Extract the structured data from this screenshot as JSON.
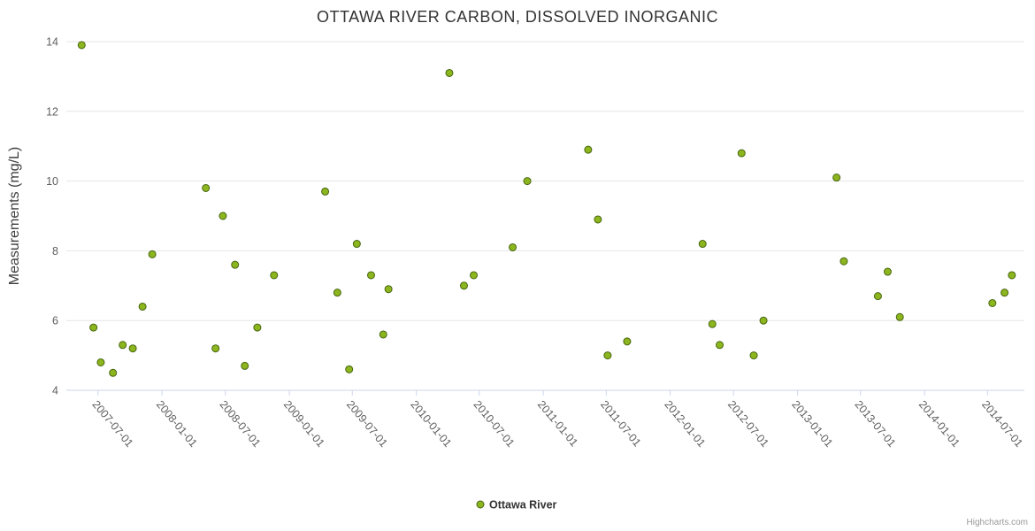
{
  "chart": {
    "title": "OTTAWA RIVER CARBON, DISSOLVED INORGANIC",
    "yaxis_title": "Measurements (mg/L)"
  },
  "legend": {
    "label": "Ottawa River"
  },
  "credits": {
    "text": "Highcharts.com"
  },
  "chart_data": {
    "type": "scatter",
    "title": "OTTAWA RIVER CARBON, DISSOLVED INORGANIC",
    "xlabel": "",
    "ylabel": "Measurements (mg/L)",
    "ylim": [
      4,
      14
    ],
    "y_ticks": [
      4,
      6,
      8,
      10,
      12,
      14
    ],
    "x_ticks": [
      "2007-07-01",
      "2008-01-01",
      "2008-07-01",
      "2009-01-01",
      "2009-07-01",
      "2010-01-01",
      "2010-07-01",
      "2011-01-01",
      "2011-07-01",
      "2012-01-01",
      "2012-07-01",
      "2013-01-01",
      "2013-07-01",
      "2014-01-01",
      "2014-07-01"
    ],
    "x_range": [
      "2007-04-01",
      "2014-10-15"
    ],
    "grid": "horizontal-only",
    "legend_position": "bottom-center",
    "colors": {
      "grid": "#e6e6e6",
      "axis": "#ccd6eb",
      "tick_label": "#606060"
    },
    "series": [
      {
        "name": "Ottawa River",
        "marker_fill": "#8cb51e",
        "marker_stroke": "#466610",
        "points": [
          {
            "x": "2007-05-15",
            "y": 13.9
          },
          {
            "x": "2007-06-18",
            "y": 5.8
          },
          {
            "x": "2007-07-09",
            "y": 4.8
          },
          {
            "x": "2007-08-13",
            "y": 4.5
          },
          {
            "x": "2007-09-10",
            "y": 5.3
          },
          {
            "x": "2007-10-09",
            "y": 5.2
          },
          {
            "x": "2007-11-06",
            "y": 6.4
          },
          {
            "x": "2007-12-04",
            "y": 7.9
          },
          {
            "x": "2008-05-06",
            "y": 9.8
          },
          {
            "x": "2008-06-03",
            "y": 5.2
          },
          {
            "x": "2008-06-24",
            "y": 9.0
          },
          {
            "x": "2008-07-29",
            "y": 7.6
          },
          {
            "x": "2008-08-26",
            "y": 4.7
          },
          {
            "x": "2008-10-01",
            "y": 5.8
          },
          {
            "x": "2008-11-18",
            "y": 7.3
          },
          {
            "x": "2009-04-14",
            "y": 9.7
          },
          {
            "x": "2009-05-19",
            "y": 6.8
          },
          {
            "x": "2009-06-22",
            "y": 4.6
          },
          {
            "x": "2009-07-14",
            "y": 8.2
          },
          {
            "x": "2009-08-24",
            "y": 7.3
          },
          {
            "x": "2009-09-28",
            "y": 5.6
          },
          {
            "x": "2009-10-13",
            "y": 6.9
          },
          {
            "x": "2010-04-06",
            "y": 13.1
          },
          {
            "x": "2010-05-18",
            "y": 7.0
          },
          {
            "x": "2010-06-15",
            "y": 7.3
          },
          {
            "x": "2010-10-05",
            "y": 8.1
          },
          {
            "x": "2010-11-16",
            "y": 10.0
          },
          {
            "x": "2011-05-10",
            "y": 10.9
          },
          {
            "x": "2011-06-07",
            "y": 8.9
          },
          {
            "x": "2011-07-05",
            "y": 5.0
          },
          {
            "x": "2011-08-30",
            "y": 5.4
          },
          {
            "x": "2012-04-03",
            "y": 8.2
          },
          {
            "x": "2012-05-01",
            "y": 5.9
          },
          {
            "x": "2012-05-22",
            "y": 5.3
          },
          {
            "x": "2012-07-24",
            "y": 10.8
          },
          {
            "x": "2012-08-28",
            "y": 5.0
          },
          {
            "x": "2012-09-25",
            "y": 6.0
          },
          {
            "x": "2013-04-23",
            "y": 10.1
          },
          {
            "x": "2013-05-14",
            "y": 7.7
          },
          {
            "x": "2013-08-20",
            "y": 6.7
          },
          {
            "x": "2013-09-17",
            "y": 7.4
          },
          {
            "x": "2013-10-22",
            "y": 6.1
          },
          {
            "x": "2014-07-15",
            "y": 6.5
          },
          {
            "x": "2014-08-19",
            "y": 6.8
          },
          {
            "x": "2014-09-09",
            "y": 7.3
          }
        ]
      }
    ]
  }
}
